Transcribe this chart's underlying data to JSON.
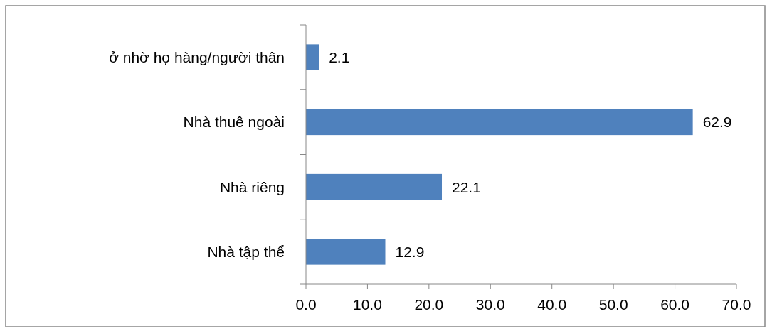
{
  "chart_data": {
    "type": "bar",
    "orientation": "horizontal",
    "categories": [
      "ở nhờ họ hàng/người thân",
      "Nhà thuê ngoài",
      "Nhà riêng",
      "Nhà tập thể"
    ],
    "values": [
      2.1,
      62.9,
      22.1,
      12.9
    ],
    "color": "#4f81bd",
    "xlim": [
      0,
      70
    ],
    "xticks": [
      {
        "value": 0,
        "label": "0.0"
      },
      {
        "value": 10,
        "label": "10.0"
      },
      {
        "value": 20,
        "label": "20.0"
      },
      {
        "value": 30,
        "label": "30.0"
      },
      {
        "value": 40,
        "label": "40.0"
      },
      {
        "value": 50,
        "label": "50.0"
      },
      {
        "value": 60,
        "label": "60.0"
      },
      {
        "value": 70,
        "label": "70.0"
      }
    ],
    "data_labels": true,
    "grid": false
  }
}
